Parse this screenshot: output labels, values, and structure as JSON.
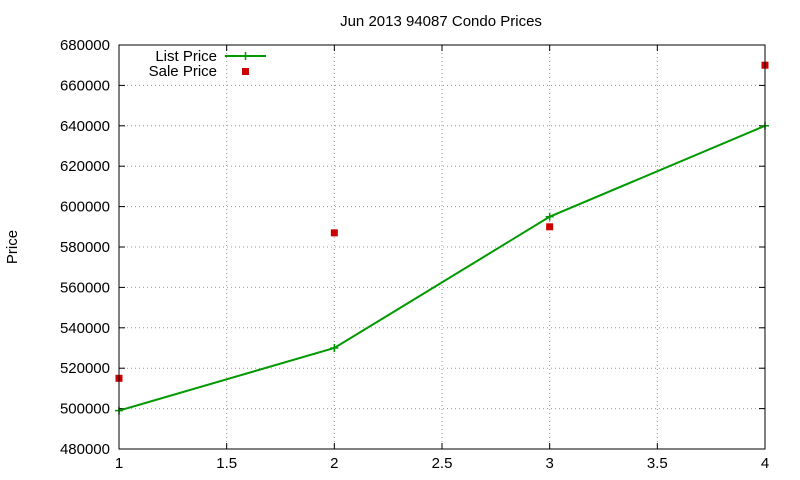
{
  "chart_data": {
    "type": "line",
    "title": "Jun 2013 94087 Condo Prices",
    "xlabel": "",
    "ylabel": "Price",
    "xlim": [
      1,
      4
    ],
    "ylim": [
      480000,
      680000
    ],
    "x_ticks": [
      "1",
      "1.5",
      "2",
      "2.5",
      "3",
      "3.5",
      "4"
    ],
    "y_ticks": [
      "480000",
      "500000",
      "520000",
      "540000",
      "560000",
      "580000",
      "600000",
      "620000",
      "640000",
      "660000",
      "680000"
    ],
    "grid": true,
    "legend_position": "top-left",
    "series": [
      {
        "name": "List Price",
        "style": "line+cross",
        "color": "#009900",
        "x": [
          1,
          2,
          3,
          4
        ],
        "values": [
          499000,
          530000,
          595000,
          640000
        ]
      },
      {
        "name": "Sale Price",
        "style": "square-points",
        "color": "#cc0000",
        "x": [
          1,
          2,
          3,
          4
        ],
        "values": [
          515000,
          587000,
          590000,
          670000
        ]
      }
    ]
  }
}
